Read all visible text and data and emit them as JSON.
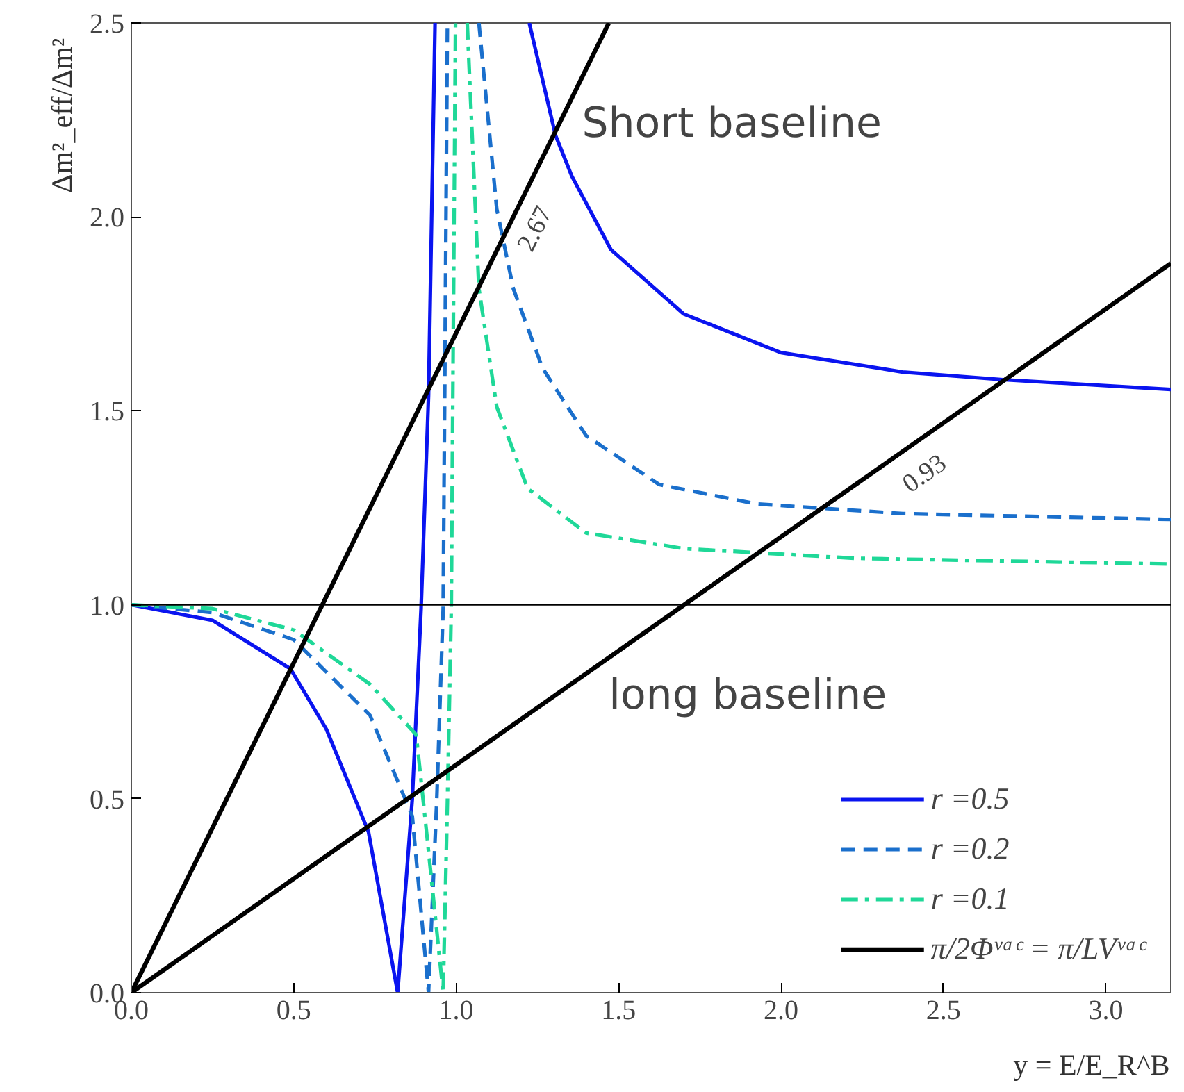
{
  "chart_data": {
    "type": "line",
    "xlabel": "y = E/E_R^B",
    "ylabel": "Δm²_eff/Δm²",
    "xlim": [
      0,
      3.2
    ],
    "ylim": [
      0,
      2.5
    ],
    "xticks": [
      {
        "value": 0,
        "label": "0.0"
      },
      0.5,
      {
        "value": 1,
        "label": "1.0"
      },
      1.5,
      {
        "value": 2,
        "label": "2.0"
      },
      2.5,
      {
        "value": 3,
        "label": "3.0"
      }
    ],
    "yticks": [
      {
        "value": 0,
        "label": "0.0"
      },
      0.5,
      {
        "value": 1,
        "label": "1.0"
      },
      1.5,
      {
        "value": 2,
        "label": "2.0"
      },
      2.5
    ],
    "grid": false,
    "legend": "bottom right",
    "marker": "none",
    "series": [
      {
        "name": "r =0.5",
        "color": "#0a14f0",
        "line_style": "solid",
        "x": [
          0,
          0.25,
          0.49,
          0.6,
          0.73,
          0.82,
          0.865,
          0.892,
          0.915,
          0.935,
          1.0,
          1.225,
          1.306,
          1.356,
          1.477,
          1.7,
          2.0,
          2.375,
          2.69,
          3.2
        ],
        "values": [
          1.0,
          0.96,
          0.835,
          0.68,
          0.415,
          0.0,
          0.5,
          0.99,
          1.54,
          2.5,
          null,
          2.5,
          2.21,
          2.105,
          1.915,
          1.75,
          1.65,
          1.6,
          1.58,
          1.555
        ]
      },
      {
        "name": "r =0.2",
        "color": "#1a6fcc",
        "line_style": "dashed",
        "x": [
          0,
          0.25,
          0.5,
          0.735,
          0.865,
          0.915,
          0.94,
          0.96,
          0.973,
          1.02,
          1.07,
          1.125,
          1.176,
          1.266,
          1.4,
          1.625,
          1.925,
          2.375,
          3.2
        ],
        "values": [
          1.0,
          0.98,
          0.91,
          0.715,
          0.455,
          0.0,
          0.49,
          0.99,
          2.5,
          null,
          2.5,
          2.02,
          1.815,
          1.61,
          1.436,
          1.31,
          1.26,
          1.235,
          1.22
        ]
      },
      {
        "name": "r =0.1",
        "color": "#1fd898",
        "line_style": "dashdot",
        "x": [
          0,
          0.25,
          0.5,
          0.735,
          0.877,
          0.91,
          0.96,
          0.973,
          0.985,
          0.998,
          1.015,
          1.034,
          1.07,
          1.125,
          1.22,
          1.4,
          1.7,
          2.225,
          3.2
        ],
        "values": [
          1.0,
          0.99,
          0.935,
          0.795,
          0.665,
          0.405,
          0.0,
          0.49,
          0.99,
          2.5,
          null,
          2.5,
          1.815,
          1.51,
          1.3,
          1.185,
          1.145,
          1.12,
          1.105
        ]
      },
      {
        "name": "π/2Φᵛᵃᶜ = π/LVᵛᵃᶜ",
        "color": "#000000",
        "line_style": "solid",
        "x": [
          0,
          1.47
        ],
        "values": [
          0,
          2.5
        ]
      },
      {
        "color": "#000000",
        "line_style": "solid",
        "x": [
          0,
          3.2
        ],
        "values": [
          0,
          1.88
        ]
      }
    ],
    "ref_lines": [
      {
        "axis": "y",
        "value": 1,
        "color": "#000000"
      }
    ],
    "annotations": [
      "Short baseline",
      "long baseline",
      "2.67",
      "0.93"
    ]
  }
}
